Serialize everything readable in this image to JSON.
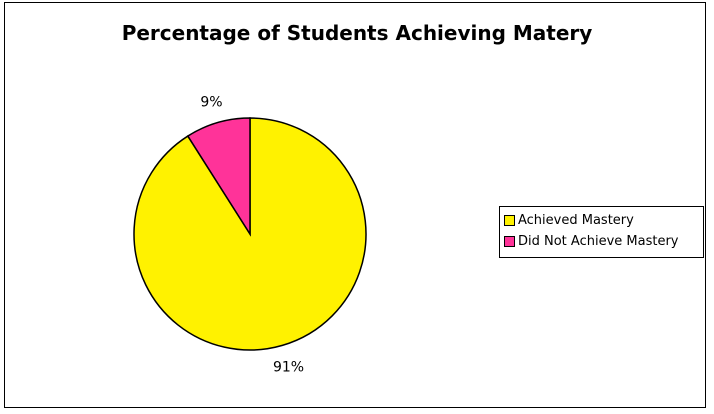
{
  "chart_data": {
    "type": "pie",
    "title": "Percentage of Students Achieving Matery",
    "categories": [
      "Achieved Mastery",
      "Did Not Achieve Mastery"
    ],
    "values": [
      91,
      9
    ],
    "value_labels": [
      "91%",
      "9%"
    ],
    "colors": [
      "#FFF200",
      "#FF3399"
    ],
    "legend_position": "right"
  }
}
